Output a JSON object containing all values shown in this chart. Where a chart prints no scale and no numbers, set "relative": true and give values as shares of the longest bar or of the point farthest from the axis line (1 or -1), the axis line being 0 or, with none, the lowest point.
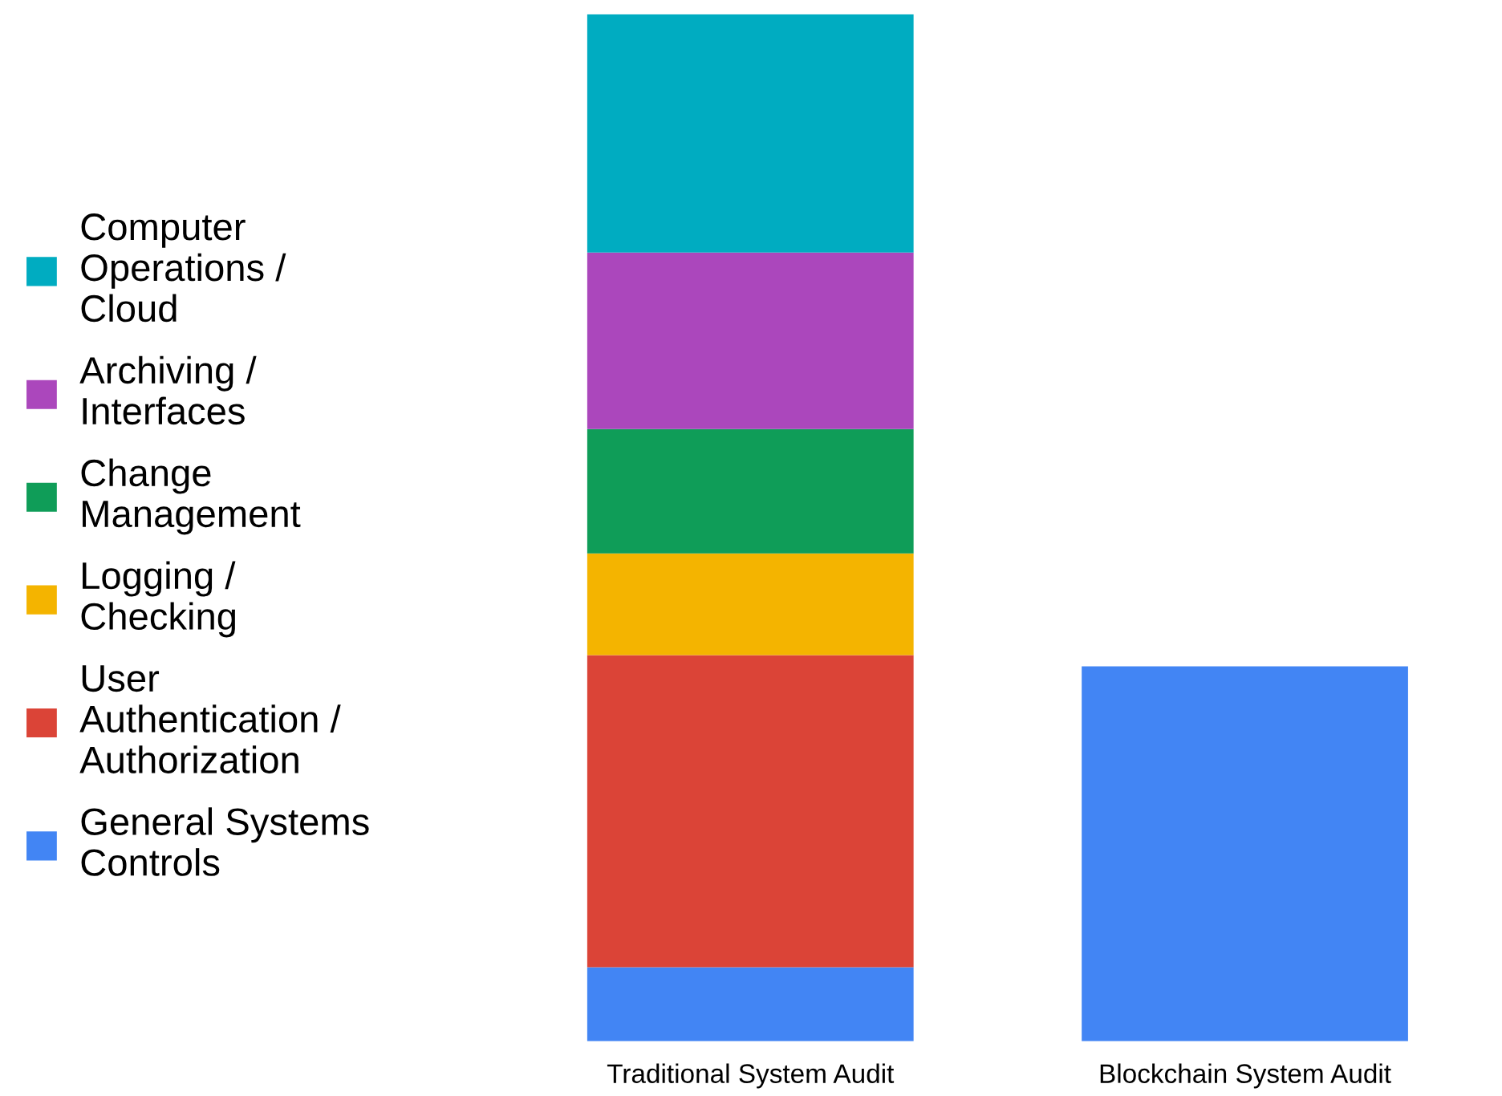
{
  "chart_data": {
    "type": "bar",
    "stacked": true,
    "relative": true,
    "legend": "left",
    "categories": [
      "Traditional System Audit",
      "Blockchain System Audit"
    ],
    "series": [
      {
        "name": "General Systems Controls",
        "color": "#4285f4",
        "values": [
          0.072,
          0.365
        ]
      },
      {
        "name": "User Authentication / Authorization",
        "color": "#db4437",
        "values": [
          0.304,
          null
        ]
      },
      {
        "name": "Logging / Checking",
        "color": "#f4b400",
        "values": [
          0.099,
          null
        ]
      },
      {
        "name": "Change Management",
        "color": "#0f9d58",
        "values": [
          0.121,
          null
        ]
      },
      {
        "name": "Archiving / Interfaces",
        "color": "#ab47bc",
        "values": [
          0.172,
          null
        ]
      },
      {
        "name": "Computer Operations / Cloud",
        "color": "#00acc1",
        "values": [
          0.232,
          null
        ]
      }
    ]
  }
}
